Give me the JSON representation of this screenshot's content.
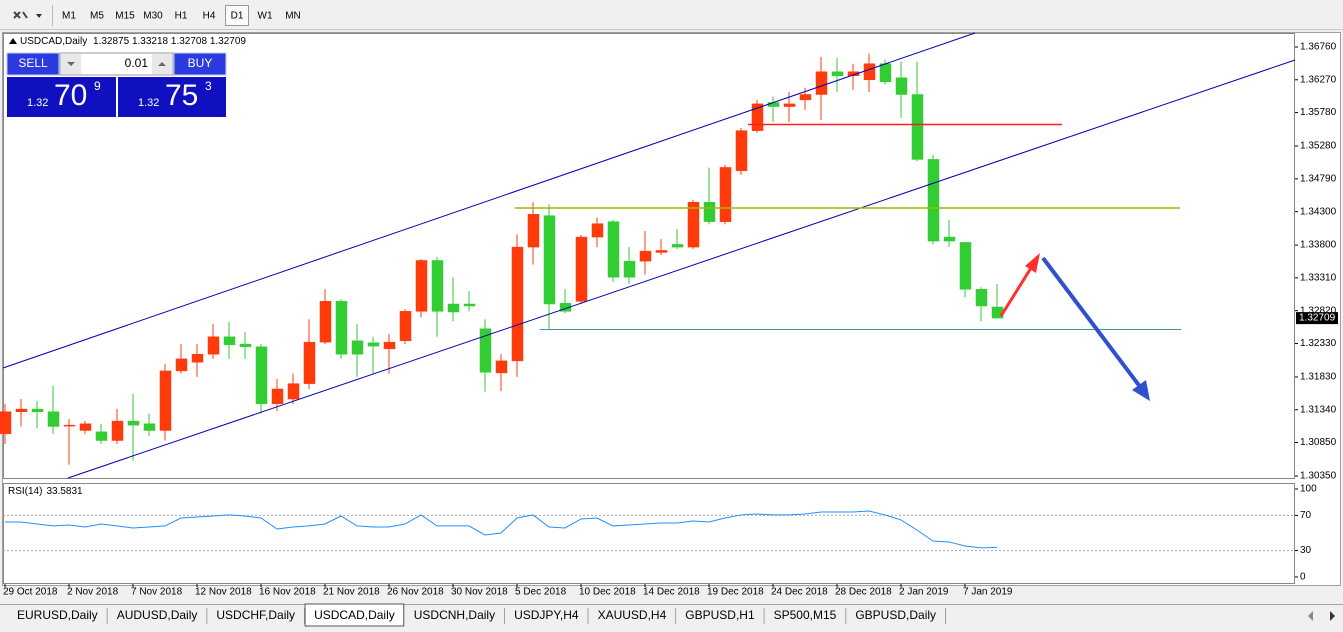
{
  "toolbar": {
    "timeframes": [
      "M1",
      "M5",
      "M15",
      "M30",
      "H1",
      "H4",
      "D1",
      "W1",
      "MN"
    ],
    "active_timeframe": "D1"
  },
  "trade_panel": {
    "sell": "SELL",
    "buy": "BUY",
    "lot": "0.01",
    "sell_price": {
      "big": "1.32",
      "main": "70",
      "small": "9"
    },
    "buy_price": {
      "big": "1.32",
      "main": "75",
      "small": "3"
    }
  },
  "chart_data": [
    {
      "type": "candlestick",
      "title": "USDCAD,Daily",
      "categories": [
        "29 Oct 2018",
        null,
        null,
        null,
        "2 Nov 2018",
        null,
        null,
        null,
        "7 Nov 2018",
        null,
        null,
        null,
        "12 Nov 2018",
        null,
        null,
        null,
        "16 Nov 2018",
        null,
        null,
        null,
        "21 Nov 2018",
        null,
        null,
        null,
        "26 Nov 2018",
        null,
        null,
        null,
        "30 Nov 2018",
        null,
        null,
        null,
        "5 Dec 2018",
        null,
        null,
        null,
        "10 Dec 2018",
        null,
        null,
        null,
        "14 Dec 2018",
        null,
        null,
        null,
        "19 Dec 2018",
        null,
        null,
        null,
        "24 Dec 2018",
        null,
        null,
        null,
        "28 Dec 2018",
        null,
        null,
        null,
        "2 Jan 2019",
        null,
        null,
        null,
        "7 Jan 2019",
        null,
        null
      ],
      "open": [
        1.3098,
        1.3131,
        1.3135,
        1.3131,
        1.311,
        1.3103,
        1.3101,
        1.3088,
        1.3117,
        1.3113,
        1.3103,
        1.3192,
        1.3205,
        1.3217,
        1.3243,
        1.3232,
        1.3228,
        1.3143,
        1.315,
        1.3173,
        1.3235,
        1.3296,
        1.3237,
        1.3234,
        1.3225,
        1.3237,
        1.3281,
        1.3357,
        1.3292,
        1.3292,
        1.3255,
        1.3189,
        1.3207,
        1.3377,
        1.3424,
        1.3293,
        1.3296,
        1.3392,
        1.3415,
        1.3356,
        1.3356,
        1.3369,
        1.3381,
        1.3377,
        1.3444,
        1.3415,
        1.3491,
        1.3551,
        1.3593,
        1.3587,
        1.3597,
        1.3605,
        1.3639,
        1.3633,
        1.3627,
        1.3651,
        1.363,
        1.3605,
        1.3508,
        1.3392,
        1.3384,
        1.3314,
        1.32875
      ],
      "high": [
        1.3143,
        1.315,
        1.3147,
        1.317,
        1.312,
        1.3117,
        1.3113,
        1.3135,
        1.3158,
        1.3128,
        1.3202,
        1.3232,
        1.3232,
        1.3262,
        1.3265,
        1.325,
        1.3232,
        1.318,
        1.3188,
        1.3269,
        1.3314,
        1.3299,
        1.3262,
        1.3243,
        1.3247,
        1.3284,
        1.3359,
        1.3362,
        1.3332,
        1.3311,
        1.3269,
        1.3217,
        1.3396,
        1.3444,
        1.3441,
        1.3314,
        1.3395,
        1.3421,
        1.3418,
        1.3377,
        1.3401,
        1.3389,
        1.3404,
        1.3448,
        1.3496,
        1.35,
        1.3555,
        1.3597,
        1.3602,
        1.3609,
        1.3615,
        1.3661,
        1.366,
        1.3651,
        1.3666,
        1.3657,
        1.3654,
        1.3654,
        1.3515,
        1.3418,
        1.3384,
        1.3317,
        1.33218
      ],
      "low": [
        1.3083,
        1.3109,
        1.3106,
        1.3098,
        1.3052,
        1.3098,
        1.3083,
        1.3083,
        1.3058,
        1.3095,
        1.3088,
        1.3188,
        1.3183,
        1.321,
        1.321,
        1.321,
        1.3128,
        1.3132,
        1.3143,
        1.3165,
        1.3232,
        1.321,
        1.3183,
        1.3188,
        1.3188,
        1.3232,
        1.3272,
        1.3243,
        1.3266,
        1.3281,
        1.3161,
        1.3162,
        1.3183,
        1.3351,
        1.3255,
        1.3278,
        1.3292,
        1.3377,
        1.3325,
        1.3322,
        1.3336,
        1.3365,
        1.3374,
        1.3374,
        1.3411,
        1.3411,
        1.3485,
        1.3548,
        1.3564,
        1.3564,
        1.3582,
        1.3567,
        1.3609,
        1.3612,
        1.3609,
        1.362,
        1.357,
        1.3505,
        1.3381,
        1.3377,
        1.3302,
        1.3266,
        1.32708
      ],
      "close": [
        1.3131,
        1.3135,
        1.3131,
        1.3109,
        1.3111,
        1.3113,
        1.3088,
        1.3117,
        1.3111,
        1.3103,
        1.3192,
        1.321,
        1.3217,
        1.3243,
        1.3231,
        1.3228,
        1.3143,
        1.3165,
        1.3173,
        1.3235,
        1.3296,
        1.3217,
        1.3217,
        1.3229,
        1.3235,
        1.3281,
        1.3357,
        1.3281,
        1.328,
        1.3289,
        1.319,
        1.3207,
        1.3377,
        1.3426,
        1.3292,
        1.3281,
        1.3392,
        1.3412,
        1.3332,
        1.3332,
        1.3371,
        1.3372,
        1.3377,
        1.3444,
        1.3415,
        1.3496,
        1.3551,
        1.3591,
        1.3587,
        1.3591,
        1.3605,
        1.3639,
        1.3633,
        1.3639,
        1.3651,
        1.3624,
        1.3605,
        1.3508,
        1.3386,
        1.3386,
        1.3314,
        1.3289,
        1.32709
      ],
      "up_color": "#ff3b0b",
      "down_color": "#33cc33",
      "ylim": [
        1.30305,
        1.36969
      ],
      "yticks": [
        {
          "value": 1.3676,
          "label": "1.36760"
        },
        {
          "value": 1.3627,
          "label": "1.36270"
        },
        {
          "value": 1.3578,
          "label": "1.35780"
        },
        {
          "value": 1.3528,
          "label": "1.35280"
        },
        {
          "value": 1.3479,
          "label": "1.34790"
        },
        {
          "value": 1.343,
          "label": "1.34300"
        },
        {
          "value": 1.338,
          "label": "1.33800"
        },
        {
          "value": 1.3331,
          "label": "1.33310"
        },
        {
          "value": 1.3282,
          "label": "1.32820"
        },
        {
          "value": 1.3233,
          "label": "1.32330"
        },
        {
          "value": 1.3183,
          "label": "1.31830"
        },
        {
          "value": 1.3134,
          "label": "1.31340"
        },
        {
          "value": 1.3085,
          "label": "1.30850"
        },
        {
          "value": 1.3035,
          "label": "1.30350"
        }
      ],
      "grid": false
    },
    {
      "type": "line",
      "title": "RSI(14)",
      "color": "#1e90ff",
      "values": [
        62.5,
        62.5,
        60.2,
        58,
        59,
        56.8,
        60.2,
        58,
        55.7,
        56.8,
        58,
        67,
        68.2,
        69.3,
        70.5,
        69.3,
        67,
        54.5,
        56.8,
        58,
        60.2,
        69.3,
        58,
        56.8,
        56.8,
        60.2,
        70.5,
        58,
        58,
        58,
        47.7,
        50,
        67,
        70.5,
        56.8,
        55.7,
        65.9,
        67,
        58,
        59,
        60.2,
        61.4,
        61.4,
        63.6,
        62.5,
        67,
        70.5,
        71.6,
        70.5,
        70.5,
        71.6,
        73.9,
        73.9,
        73.9,
        75,
        70.5,
        64.8,
        53.4,
        40.9,
        39.8,
        35.2,
        33,
        33.5831
      ],
      "ylim": [
        -8,
        106.8
      ],
      "yticks": [
        0,
        30,
        70,
        100
      ],
      "levels": [
        30,
        70
      ]
    }
  ],
  "tabs": [
    "EURUSD,Daily",
    "AUDUSD,Daily",
    "USDCHF,Daily",
    "USDCAD,Daily",
    "USDCNH,Daily",
    "USDJPY,H4",
    "XAUUSD,H4",
    "GBPUSD,H1",
    "SP500,M15",
    "GBPUSD,Daily"
  ],
  "active_tab": "USDCAD,Daily"
}
